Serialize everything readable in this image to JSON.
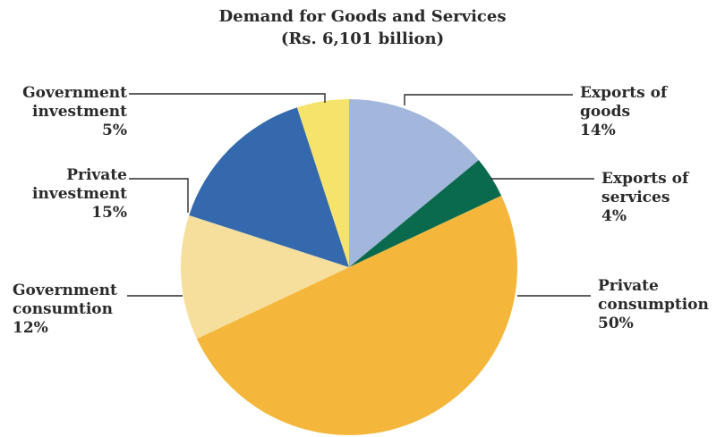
{
  "chart_data": {
    "type": "pie",
    "title": "Demand for Goods and Services",
    "subtitle": "(Rs. 6,101 billion)",
    "slices": [
      {
        "label_lines": [
          "Exports of",
          "goods"
        ],
        "value": 14,
        "value_label": "14%",
        "color": "#a3b6dc"
      },
      {
        "label_lines": [
          "Exports of",
          "services"
        ],
        "value": 4,
        "value_label": "4%",
        "color": "#0a6a4e"
      },
      {
        "label_lines": [
          "Private",
          "consumption"
        ],
        "value": 50,
        "value_label": "50%",
        "color": "#f4b73c"
      },
      {
        "label_lines": [
          "Government",
          "consumtion"
        ],
        "value": 12,
        "value_label": "12%",
        "color": "#f6df9c"
      },
      {
        "label_lines": [
          "Private",
          "investment"
        ],
        "value": 15,
        "value_label": "15%",
        "color": "#3469ad"
      },
      {
        "label_lines": [
          "Government",
          "investment"
        ],
        "value": 5,
        "value_label": "5%",
        "color": "#f6e36b"
      }
    ]
  }
}
